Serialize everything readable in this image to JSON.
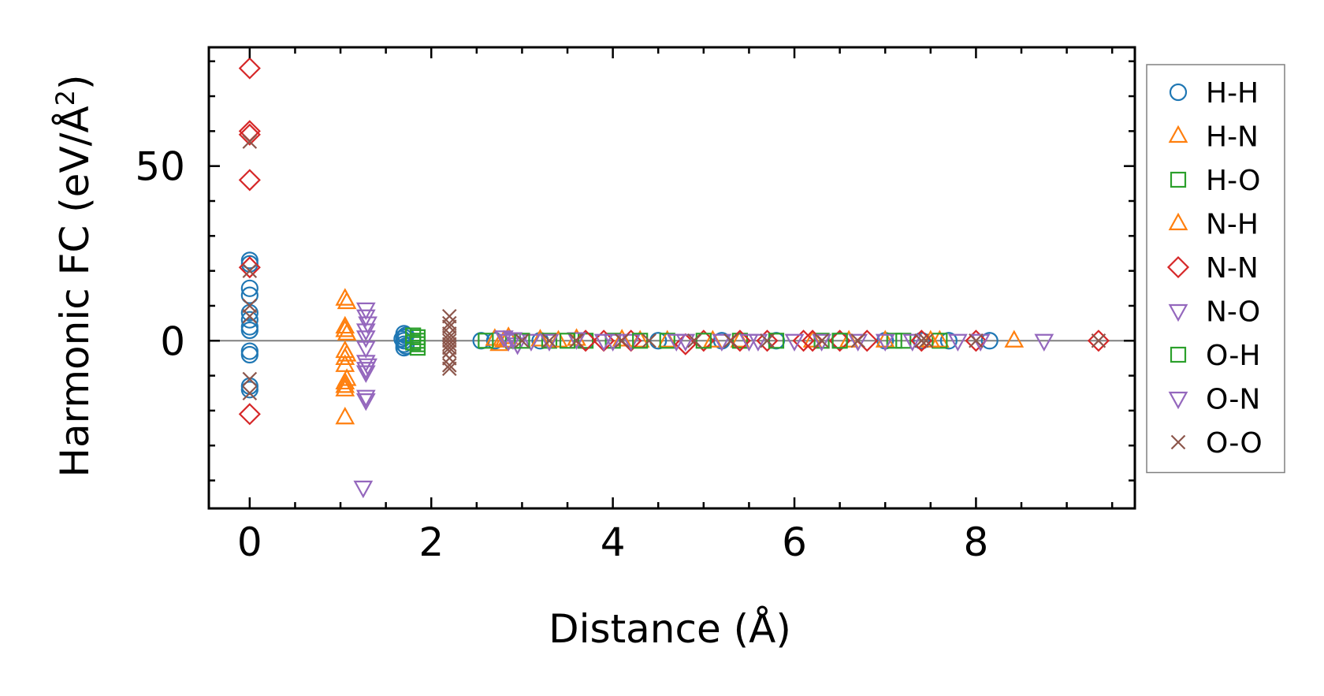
{
  "chart_data": {
    "type": "scatter",
    "xlabel": "Distance (Å)",
    "ylabel": "Harmonic FC (eV/Å",
    "ylabel_sup": "2",
    "ylabel_end": ")",
    "xlim": [
      -0.45,
      9.75
    ],
    "ylim": [
      -48,
      84
    ],
    "x_ticks": [
      0,
      2,
      4,
      6,
      8
    ],
    "x_tick_labels": [
      "0",
      "2",
      "4",
      "6",
      "8"
    ],
    "x_minor_ticks": [
      0.5,
      1,
      1.5,
      2.5,
      3,
      3.5,
      4.5,
      5,
      5.5,
      6.5,
      7,
      7.5,
      8.5,
      9,
      9.5
    ],
    "y_ticks": [
      0,
      50
    ],
    "y_tick_labels": [
      "0",
      "50"
    ],
    "y_minor_ticks": [
      -40,
      -30,
      -20,
      -10,
      10,
      20,
      30,
      40,
      60,
      70,
      80
    ],
    "zero_line": 0,
    "grid": false,
    "legend_position": "outside-right",
    "series": [
      {
        "name": "H-H",
        "marker": "circle",
        "color": "#1f77b4",
        "points": [
          [
            0,
            23
          ],
          [
            0,
            22
          ],
          [
            0,
            15
          ],
          [
            0,
            13
          ],
          [
            0,
            8
          ],
          [
            0,
            6
          ],
          [
            0,
            4
          ],
          [
            0,
            3
          ],
          [
            0,
            -3
          ],
          [
            0,
            -4
          ],
          [
            0,
            -13
          ],
          [
            0,
            -14
          ],
          [
            1.7,
            2
          ],
          [
            1.7,
            1
          ],
          [
            1.7,
            0
          ],
          [
            1.7,
            -1
          ],
          [
            1.7,
            -2
          ],
          [
            1.72,
            1.5
          ],
          [
            1.72,
            -1.5
          ],
          [
            1.68,
            0.5
          ],
          [
            2.55,
            0
          ],
          [
            2.7,
            0
          ],
          [
            3.2,
            0
          ],
          [
            3.7,
            0
          ],
          [
            4.5,
            0
          ],
          [
            5.2,
            0
          ],
          [
            5.8,
            0
          ],
          [
            6.5,
            0
          ],
          [
            7.0,
            0
          ],
          [
            7.4,
            0
          ],
          [
            7.7,
            0
          ],
          [
            8.15,
            0
          ]
        ]
      },
      {
        "name": "H-N",
        "marker": "triangle-up",
        "color": "#ff7f0e",
        "points": [
          [
            1.05,
            12
          ],
          [
            1.05,
            4
          ],
          [
            1.05,
            3
          ],
          [
            1.05,
            -3
          ],
          [
            1.05,
            -5
          ],
          [
            1.05,
            -7
          ],
          [
            1.05,
            -12
          ],
          [
            1.05,
            -13
          ],
          [
            1.05,
            -14
          ],
          [
            1.05,
            -22
          ],
          [
            2.7,
            0.5
          ],
          [
            2.75,
            -1
          ],
          [
            2.85,
            1
          ],
          [
            3.2,
            0.3
          ],
          [
            3.6,
            0.5
          ],
          [
            4.1,
            0.3
          ],
          [
            4.6,
            0
          ],
          [
            5.4,
            0
          ],
          [
            6.2,
            0
          ],
          [
            7.0,
            0
          ],
          [
            7.6,
            0
          ],
          [
            8.42,
            0
          ]
        ]
      },
      {
        "name": "H-O",
        "marker": "square",
        "color": "#2ca02c",
        "points": [
          [
            1.85,
            1
          ],
          [
            1.85,
            0
          ],
          [
            1.85,
            -1
          ],
          [
            1.85,
            -2
          ],
          [
            2.6,
            0
          ],
          [
            2.9,
            0
          ],
          [
            3.3,
            0
          ],
          [
            3.7,
            0
          ],
          [
            4.0,
            0
          ],
          [
            4.6,
            0
          ],
          [
            5.4,
            0
          ],
          [
            6.3,
            0
          ],
          [
            7.2,
            0
          ],
          [
            7.6,
            0
          ]
        ]
      },
      {
        "name": "N-H",
        "marker": "triangle-up",
        "color": "#ff7f0e",
        "points": [
          [
            1.07,
            11
          ],
          [
            1.07,
            2
          ],
          [
            1.07,
            -4
          ],
          [
            1.07,
            -11
          ],
          [
            2.8,
            0
          ],
          [
            3.4,
            0
          ],
          [
            4.3,
            0
          ],
          [
            5.1,
            0
          ],
          [
            6.6,
            0
          ],
          [
            7.5,
            0
          ]
        ]
      },
      {
        "name": "N-N",
        "marker": "diamond",
        "color": "#d62728",
        "points": [
          [
            0,
            78
          ],
          [
            0,
            60
          ],
          [
            0,
            59
          ],
          [
            0,
            46
          ],
          [
            0,
            21
          ],
          [
            0,
            -21
          ],
          [
            3.7,
            0
          ],
          [
            3.9,
            0
          ],
          [
            4.2,
            0
          ],
          [
            4.8,
            -1
          ],
          [
            5.0,
            0
          ],
          [
            5.4,
            0
          ],
          [
            5.7,
            0
          ],
          [
            6.1,
            0
          ],
          [
            6.2,
            0
          ],
          [
            6.5,
            0
          ],
          [
            6.8,
            0
          ],
          [
            7.4,
            0
          ],
          [
            8.0,
            0
          ],
          [
            9.35,
            0
          ]
        ]
      },
      {
        "name": "N-O",
        "marker": "triangle-down",
        "color": "#9467bd",
        "points": [
          [
            1.28,
            9
          ],
          [
            1.28,
            7
          ],
          [
            1.28,
            3
          ],
          [
            1.28,
            1
          ],
          [
            1.28,
            -2
          ],
          [
            1.28,
            -6
          ],
          [
            1.28,
            -8
          ],
          [
            1.28,
            -9
          ],
          [
            1.28,
            -16
          ],
          [
            1.28,
            -17
          ],
          [
            1.25,
            -42
          ],
          [
            2.8,
            1
          ],
          [
            2.85,
            0
          ],
          [
            2.95,
            -1
          ],
          [
            3.1,
            0
          ],
          [
            3.6,
            0.5
          ],
          [
            3.9,
            0
          ],
          [
            4.2,
            0
          ],
          [
            4.7,
            0
          ],
          [
            5.2,
            0
          ],
          [
            5.6,
            0
          ],
          [
            6.0,
            0
          ],
          [
            6.7,
            0
          ],
          [
            7.3,
            0
          ],
          [
            7.8,
            0
          ],
          [
            8.75,
            0
          ]
        ]
      },
      {
        "name": "O-H",
        "marker": "square",
        "color": "#2ca02c",
        "points": [
          [
            1.8,
            1.5
          ],
          [
            1.8,
            -0.5
          ],
          [
            3.0,
            0
          ],
          [
            3.5,
            0
          ],
          [
            4.3,
            0
          ],
          [
            5.0,
            0
          ],
          [
            5.8,
            0
          ],
          [
            6.5,
            0
          ],
          [
            7.1,
            0
          ]
        ]
      },
      {
        "name": "O-N",
        "marker": "triangle-down",
        "color": "#9467bd",
        "points": [
          [
            1.3,
            5
          ],
          [
            1.3,
            -7
          ],
          [
            2.9,
            0.5
          ],
          [
            3.3,
            0
          ],
          [
            4.0,
            0
          ],
          [
            4.8,
            0
          ],
          [
            5.5,
            0
          ],
          [
            6.3,
            0
          ],
          [
            7.0,
            0
          ],
          [
            8.05,
            0
          ]
        ]
      },
      {
        "name": "O-O",
        "marker": "x",
        "color": "#8c564b",
        "points": [
          [
            0,
            20
          ],
          [
            0,
            10
          ],
          [
            0,
            7
          ],
          [
            0,
            -11
          ],
          [
            0,
            -15
          ],
          [
            0,
            57
          ],
          [
            2.2,
            7
          ],
          [
            2.2,
            5
          ],
          [
            2.2,
            4
          ],
          [
            2.2,
            2
          ],
          [
            2.2,
            1
          ],
          [
            2.2,
            0
          ],
          [
            2.2,
            -1
          ],
          [
            2.2,
            -2
          ],
          [
            2.2,
            -3
          ],
          [
            2.2,
            -5
          ],
          [
            2.2,
            -7
          ],
          [
            2.2,
            -8
          ],
          [
            3.0,
            0
          ],
          [
            3.3,
            0
          ],
          [
            3.6,
            0
          ],
          [
            4.1,
            0
          ],
          [
            4.4,
            0
          ],
          [
            4.9,
            0
          ],
          [
            5.3,
            0
          ],
          [
            5.7,
            0
          ],
          [
            6.3,
            0
          ],
          [
            6.7,
            0
          ],
          [
            7.4,
            0
          ],
          [
            7.45,
            0
          ],
          [
            8.0,
            0
          ],
          [
            9.35,
            0
          ]
        ]
      }
    ]
  }
}
